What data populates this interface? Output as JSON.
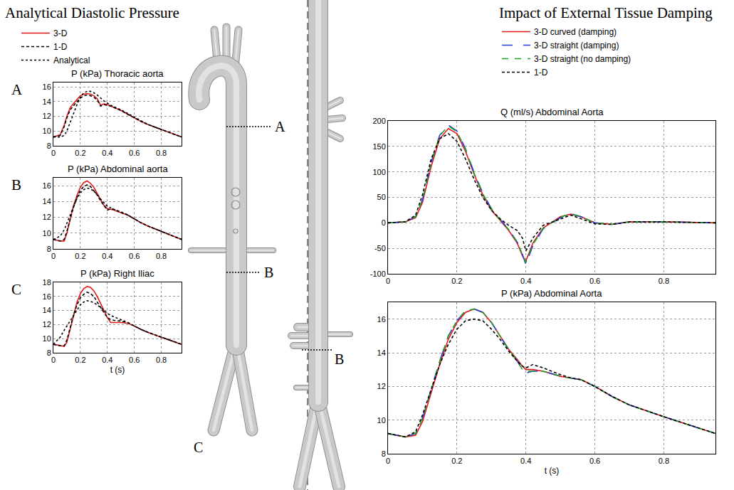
{
  "headings": [
    "Analytical Diastolic Pressure",
    "Impact of External Tissue Damping"
  ],
  "diagram": {
    "left_model_labels": [
      "A",
      "B",
      "C"
    ],
    "right_model_labels": [
      "B"
    ]
  },
  "chart_data": [
    {
      "type": "line",
      "panel_label": "A",
      "title": "P (kPa) Thoracic aorta",
      "legend": "top left",
      "grid": true,
      "xlim": [
        0,
        0.95
      ],
      "xticks": [
        0,
        0.2,
        0.4,
        0.6,
        0.8
      ],
      "ylim": [
        8,
        16.6
      ],
      "yticks": [
        8,
        10,
        12,
        14,
        16
      ],
      "x": [
        0,
        0.05,
        0.08,
        0.1,
        0.125,
        0.15,
        0.175,
        0.2,
        0.225,
        0.25,
        0.275,
        0.3,
        0.325,
        0.35,
        0.375,
        0.4,
        0.425,
        0.45,
        0.5,
        0.55,
        0.6,
        0.65,
        0.7,
        0.8,
        0.95
      ],
      "series": [
        {
          "name": "3-D",
          "color": "#e31a1c",
          "line_style": "solid",
          "values": [
            9.2,
            9.5,
            10.8,
            12.0,
            13.2,
            13.8,
            14.3,
            14.8,
            15.0,
            15.1,
            15.0,
            14.8,
            14.4,
            13.5,
            13.7,
            13.6,
            13.4,
            13.2,
            12.8,
            12.3,
            11.8,
            11.3,
            10.9,
            10.2,
            9.2
          ]
        },
        {
          "name": "1-D",
          "color": "#000000",
          "line_style": "dashed",
          "values": [
            9.2,
            9.4,
            10.6,
            11.8,
            12.9,
            13.5,
            14.0,
            14.5,
            14.8,
            14.9,
            14.8,
            14.6,
            14.2,
            13.4,
            13.6,
            13.5,
            13.4,
            13.2,
            12.8,
            12.3,
            11.8,
            11.3,
            10.9,
            10.2,
            9.2
          ]
        },
        {
          "name": "Analytical",
          "color": "#000000",
          "line_style": "dotted",
          "values": [
            9.2,
            9.2,
            9.4,
            10.0,
            11.2,
            12.5,
            13.6,
            14.6,
            15.2,
            15.4,
            15.4,
            15.2,
            14.9,
            14.5,
            14.1,
            13.8,
            13.5,
            13.3,
            12.9,
            12.4,
            11.9,
            11.4,
            10.9,
            10.2,
            9.2
          ]
        }
      ]
    },
    {
      "type": "line",
      "panel_label": "B",
      "title": "P (kPa) Abdominal aorta",
      "grid": true,
      "xlim": [
        0,
        0.95
      ],
      "xticks": [
        0,
        0.2,
        0.4,
        0.6,
        0.8
      ],
      "ylim": [
        8,
        17
      ],
      "yticks": [
        8,
        10,
        12,
        14,
        16
      ],
      "x": [
        0,
        0.05,
        0.08,
        0.1,
        0.125,
        0.15,
        0.175,
        0.2,
        0.225,
        0.25,
        0.275,
        0.3,
        0.325,
        0.35,
        0.375,
        0.4,
        0.425,
        0.45,
        0.5,
        0.55,
        0.6,
        0.65,
        0.7,
        0.8,
        0.95
      ],
      "series": [
        {
          "name": "3-D",
          "color": "#e31a1c",
          "line_style": "solid",
          "values": [
            9.2,
            9.0,
            9.0,
            10.0,
            11.8,
            13.5,
            14.8,
            15.8,
            16.4,
            16.6,
            16.3,
            15.8,
            15.0,
            14.2,
            13.5,
            13.1,
            13.0,
            12.9,
            12.6,
            12.3,
            11.8,
            11.3,
            10.9,
            10.2,
            9.2
          ]
        },
        {
          "name": "1-D",
          "color": "#000000",
          "line_style": "dashed",
          "values": [
            9.2,
            9.0,
            9.2,
            10.2,
            11.8,
            13.3,
            14.5,
            15.4,
            15.9,
            16.1,
            15.9,
            15.4,
            14.8,
            14.1,
            13.5,
            12.9,
            13.1,
            13.0,
            12.6,
            12.3,
            11.8,
            11.3,
            10.9,
            10.2,
            9.2
          ]
        },
        {
          "name": "Analytical",
          "color": "#000000",
          "line_style": "dotted",
          "values": [
            9.2,
            9.6,
            10.4,
            11.2,
            12.3,
            13.4,
            14.4,
            15.1,
            15.5,
            15.7,
            15.6,
            15.3,
            14.9,
            14.3,
            13.8,
            13.4,
            13.2,
            13.0,
            12.7,
            12.3,
            11.8,
            11.3,
            10.9,
            10.2,
            9.2
          ]
        }
      ]
    },
    {
      "type": "line",
      "panel_label": "C",
      "title": "P (kPa) Right Iliac",
      "x_label": "t (s)",
      "grid": true,
      "xlim": [
        0,
        0.95
      ],
      "xticks": [
        0,
        0.2,
        0.4,
        0.6,
        0.8
      ],
      "ylim": [
        8,
        18
      ],
      "yticks": [
        8,
        10,
        12,
        14,
        16,
        18
      ],
      "x": [
        0,
        0.05,
        0.08,
        0.1,
        0.125,
        0.15,
        0.175,
        0.2,
        0.225,
        0.25,
        0.275,
        0.3,
        0.325,
        0.35,
        0.375,
        0.4,
        0.425,
        0.45,
        0.5,
        0.55,
        0.6,
        0.65,
        0.7,
        0.8,
        0.95
      ],
      "series": [
        {
          "name": "3-D",
          "color": "#e31a1c",
          "line_style": "solid",
          "values": [
            9.2,
            9.0,
            8.9,
            9.5,
            11.5,
            13.5,
            15.2,
            16.4,
            17.1,
            17.4,
            17.3,
            16.8,
            16.0,
            15.0,
            14.0,
            13.0,
            12.3,
            12.3,
            12.3,
            12.2,
            11.8,
            11.3,
            10.9,
            10.2,
            9.2
          ]
        },
        {
          "name": "1-D",
          "color": "#000000",
          "line_style": "dashed",
          "values": [
            9.2,
            9.0,
            9.0,
            9.8,
            11.6,
            13.4,
            14.8,
            15.8,
            16.3,
            16.6,
            16.4,
            16.0,
            15.2,
            14.4,
            13.7,
            13.0,
            12.7,
            12.6,
            12.5,
            12.3,
            11.8,
            11.3,
            10.9,
            10.2,
            9.2
          ]
        },
        {
          "name": "Analytical",
          "color": "#000000",
          "line_style": "dotted",
          "values": [
            9.2,
            10.2,
            11.2,
            11.8,
            12.6,
            13.3,
            14.1,
            14.8,
            15.2,
            15.4,
            15.3,
            15.1,
            14.8,
            14.4,
            14.0,
            13.6,
            13.3,
            13.1,
            12.7,
            12.3,
            11.8,
            11.3,
            10.9,
            10.2,
            9.2
          ]
        }
      ]
    },
    {
      "type": "line",
      "title": "Q (ml/s) Abdominal Aorta",
      "legend": "top right",
      "grid": true,
      "xlim": [
        0,
        0.95
      ],
      "xticks": [
        0,
        0.2,
        0.4,
        0.6,
        0.8
      ],
      "ylim": [
        -100,
        200
      ],
      "yticks": [
        -100,
        -50,
        0,
        50,
        100,
        150,
        200
      ],
      "x": [
        0,
        0.05,
        0.08,
        0.1,
        0.125,
        0.15,
        0.175,
        0.2,
        0.225,
        0.25,
        0.275,
        0.3,
        0.325,
        0.35,
        0.375,
        0.39,
        0.4,
        0.42,
        0.45,
        0.5,
        0.53,
        0.56,
        0.6,
        0.65,
        0.7,
        0.8,
        0.95
      ],
      "series": [
        {
          "name": "3-D curved (damping)",
          "color": "#e31a1c",
          "line_style": "solid",
          "values": [
            0,
            2,
            10,
            40,
            110,
            165,
            185,
            175,
            140,
            95,
            55,
            25,
            5,
            -15,
            -40,
            -65,
            -75,
            -40,
            -10,
            12,
            17,
            12,
            0,
            -3,
            2,
            2,
            0
          ]
        },
        {
          "name": "3-D straight (damping)",
          "color": "#1f3fd6",
          "line_style": "longdash",
          "values": [
            0,
            2,
            12,
            45,
            118,
            172,
            192,
            180,
            145,
            98,
            58,
            28,
            7,
            -13,
            -38,
            -62,
            -82,
            -45,
            -12,
            10,
            18,
            12,
            0,
            -3,
            2,
            2,
            0
          ]
        },
        {
          "name": "3-D straight (no damping)",
          "color": "#1a9e2c",
          "line_style": "dash",
          "values": [
            0,
            2,
            12,
            45,
            117,
            171,
            190,
            179,
            144,
            97,
            57,
            27,
            6,
            -13,
            -38,
            -62,
            -78,
            -43,
            -11,
            11,
            18,
            12,
            0,
            -3,
            2,
            2,
            0
          ]
        },
        {
          "name": "1-D",
          "color": "#000000",
          "line_style": "dashed",
          "values": [
            0,
            2,
            15,
            55,
            125,
            165,
            175,
            160,
            125,
            85,
            50,
            25,
            8,
            -5,
            -15,
            -30,
            -55,
            -30,
            -5,
            8,
            15,
            8,
            -2,
            -3,
            2,
            2,
            0
          ]
        }
      ]
    },
    {
      "type": "line",
      "title": "P (kPa) Abdominal Aorta",
      "x_label": "t (s)",
      "grid": true,
      "xlim": [
        0,
        0.95
      ],
      "xticks": [
        0,
        0.2,
        0.4,
        0.6,
        0.8
      ],
      "ylim": [
        8,
        17
      ],
      "yticks": [
        8,
        10,
        12,
        14,
        16
      ],
      "x": [
        0,
        0.05,
        0.08,
        0.1,
        0.125,
        0.15,
        0.175,
        0.2,
        0.225,
        0.25,
        0.275,
        0.3,
        0.325,
        0.35,
        0.375,
        0.39,
        0.4,
        0.42,
        0.45,
        0.5,
        0.53,
        0.56,
        0.6,
        0.65,
        0.7,
        0.8,
        0.95
      ],
      "series": [
        {
          "name": "3-D curved (damping)",
          "color": "#e31a1c",
          "line_style": "solid",
          "values": [
            9.2,
            9.0,
            9.1,
            9.9,
            11.6,
            13.3,
            14.8,
            15.8,
            16.4,
            16.6,
            16.4,
            15.8,
            15.0,
            14.2,
            13.6,
            13.2,
            13.0,
            13.0,
            12.9,
            12.6,
            12.5,
            12.4,
            12.0,
            11.4,
            10.9,
            10.2,
            9.2
          ]
        },
        {
          "name": "3-D straight (damping)",
          "color": "#1f3fd6",
          "line_style": "longdash",
          "values": [
            9.2,
            9.0,
            9.2,
            10.1,
            11.8,
            13.5,
            15.0,
            15.9,
            16.5,
            16.6,
            16.4,
            15.8,
            15.0,
            14.2,
            13.5,
            13.0,
            12.8,
            12.9,
            12.9,
            12.6,
            12.5,
            12.4,
            12.0,
            11.4,
            10.9,
            10.2,
            9.2
          ]
        },
        {
          "name": "3-D straight (no damping)",
          "color": "#1a9e2c",
          "line_style": "dash",
          "values": [
            9.2,
            9.0,
            9.2,
            10.1,
            11.8,
            13.5,
            15.0,
            15.9,
            16.5,
            16.6,
            16.4,
            15.8,
            15.0,
            14.2,
            13.5,
            13.0,
            12.9,
            12.9,
            12.9,
            12.6,
            12.5,
            12.4,
            12.0,
            11.4,
            10.9,
            10.2,
            9.2
          ]
        },
        {
          "name": "1-D",
          "color": "#000000",
          "line_style": "dashed",
          "values": [
            9.2,
            9.0,
            9.3,
            10.3,
            11.8,
            13.3,
            14.5,
            15.4,
            15.9,
            16.0,
            15.9,
            15.4,
            14.8,
            14.1,
            13.5,
            13.2,
            13.1,
            13.3,
            13.1,
            12.7,
            12.5,
            12.4,
            12.0,
            11.4,
            10.9,
            10.2,
            9.2
          ]
        }
      ]
    }
  ]
}
